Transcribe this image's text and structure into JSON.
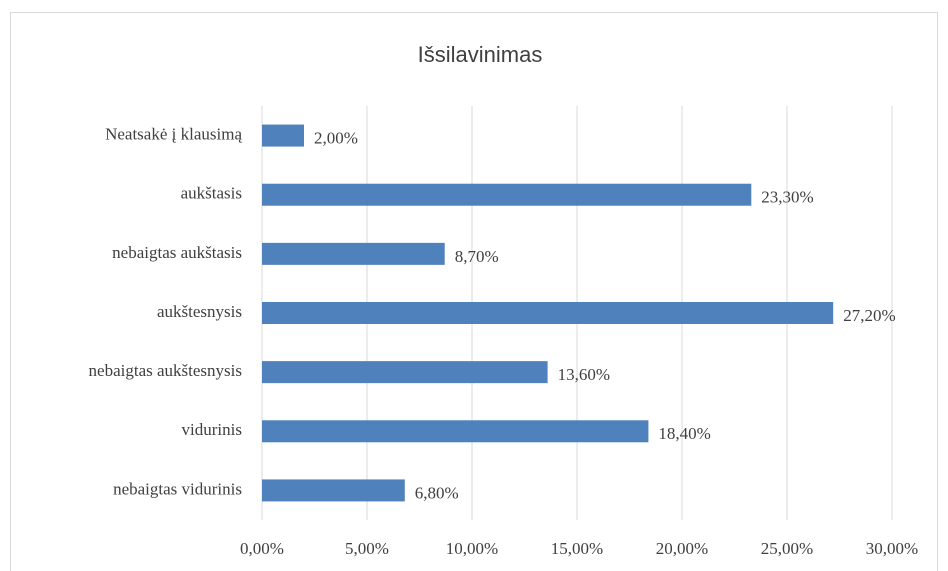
{
  "chart_data": {
    "type": "bar",
    "orientation": "horizontal",
    "title": "Išsilavinimas",
    "categories": [
      "Neatsakė į klausimą",
      "aukštasis",
      "nebaigtas aukštasis",
      "aukštesnysis",
      "nebaigtas aukštesnysis",
      "vidurinis",
      "nebaigtas vidurinis"
    ],
    "values": [
      2.0,
      23.3,
      8.7,
      27.2,
      13.6,
      18.4,
      6.8
    ],
    "value_labels": [
      "2,00%",
      "23,30%",
      "8,70%",
      "27,20%",
      "13,60%",
      "18,40%",
      "6,80%"
    ],
    "color": "#4f81bd",
    "xlim": [
      0,
      30
    ],
    "xticks": [
      {
        "value": 0,
        "label": "0,00%"
      },
      {
        "value": 5,
        "label": "5,00%"
      },
      {
        "value": 10,
        "label": "10,00%"
      },
      {
        "value": 15,
        "label": "15,00%"
      },
      {
        "value": 20,
        "label": "20,00%"
      },
      {
        "value": 25,
        "label": "25,00%"
      },
      {
        "value": 30,
        "label": "30,00%"
      }
    ],
    "grid": true
  }
}
